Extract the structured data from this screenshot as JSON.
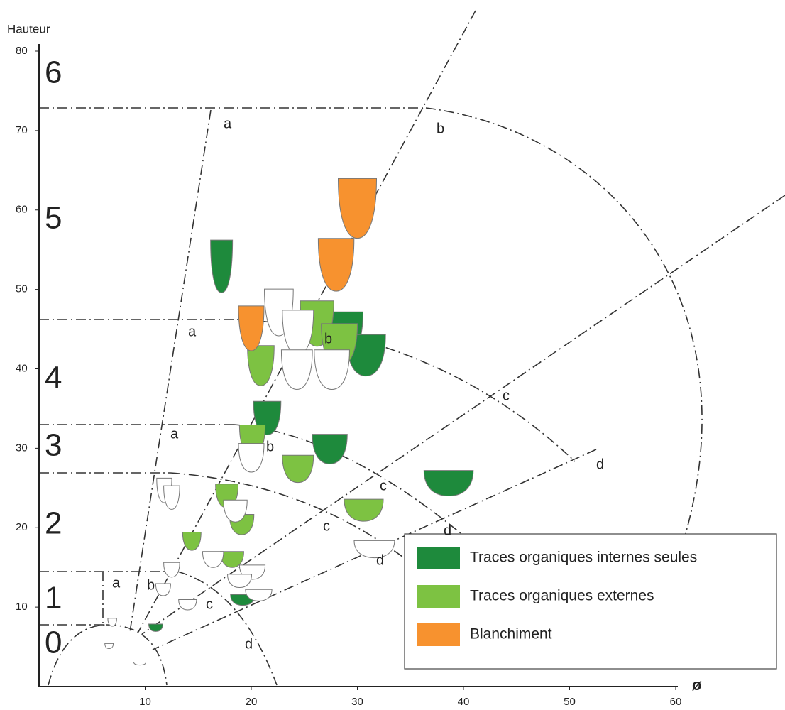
{
  "chart_data": {
    "type": "scatter",
    "y_label": "Hauteur",
    "x_label": "ø",
    "xlim": [
      0,
      60
    ],
    "ylim": [
      0,
      80
    ],
    "xticks": [
      10,
      20,
      30,
      40,
      50,
      60
    ],
    "yticks": [
      10,
      20,
      30,
      40,
      50,
      60,
      70,
      80
    ],
    "zones": [
      "0",
      "1",
      "2",
      "3",
      "4",
      "5",
      "6"
    ],
    "zone_letters": [
      "a",
      "a",
      "a",
      "a",
      "b",
      "b",
      "b",
      "b",
      "c",
      "c",
      "c",
      "c",
      "d",
      "d",
      "d",
      "d"
    ],
    "series": [
      {
        "name": "Traces organiques internes seules",
        "color": "#1e8a3c",
        "x": [
          17.2,
          28.8,
          30.8,
          21.5,
          27.4,
          38.6,
          19.2,
          11.0
        ],
        "y": [
          52.9,
          44.4,
          41.7,
          33.8,
          29.9,
          25.6,
          10.9,
          7.4
        ]
      },
      {
        "name": "Traces organiques externes",
        "color": "#7dc242",
        "x": [
          20.9,
          26.2,
          28.3,
          20.1,
          24.4,
          17.7,
          19.1,
          30.6,
          14.4,
          18.2
        ],
        "y": [
          40.4,
          45.7,
          43.0,
          31.0,
          27.4,
          24.0,
          20.4,
          22.2,
          18.3,
          16.0
        ]
      },
      {
        "name": "Blanchiment",
        "color": "#f7922f",
        "x": [
          30.0,
          28.0,
          20.0
        ],
        "y": [
          60.2,
          53.1,
          45.1
        ]
      },
      {
        "color": "#ffffff",
        "x": [
          22.6,
          24.4,
          24.3,
          27.6,
          20.0,
          18.5,
          11.8,
          12.5,
          16.4,
          12.5,
          11.7,
          20.1,
          18.9,
          20.7,
          14.0,
          31.6,
          6.9,
          6.6,
          9.5
        ],
        "y": [
          47.1,
          44.6,
          39.9,
          39.9,
          28.8,
          22.1,
          24.7,
          23.8,
          16.0,
          14.7,
          12.2,
          14.4,
          13.3,
          11.5,
          10.3,
          17.3,
          8.1,
          5.1,
          2.9
        ]
      }
    ]
  }
}
